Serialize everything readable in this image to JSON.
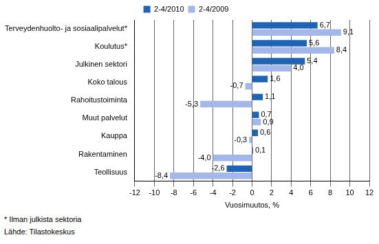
{
  "chart_data": {
    "type": "bar",
    "orientation": "horizontal",
    "categories": [
      "Terveydenhuolto- ja sosiaalipalvelut*",
      "Koulutus*",
      "Julkinen sektori",
      "Koko talous",
      "Rahoitustoiminta",
      "Muut palvelut",
      "Kauppa",
      "Rakentaminen",
      "Teollisuus"
    ],
    "series": [
      {
        "name": "2-4/2010",
        "color": "#1f64b4",
        "values": [
          6.7,
          5.6,
          5.4,
          1.6,
          1.1,
          0.7,
          0.6,
          0.1,
          -2.6
        ],
        "value_labels": [
          "6,7",
          "5,6",
          "5,4",
          "1,6",
          "1,1",
          "0,7",
          "0,6",
          "0,1",
          "-2,6"
        ]
      },
      {
        "name": "2-4/2009",
        "color": "#a3b8e8",
        "values": [
          9.1,
          8.4,
          4.0,
          -0.7,
          -5.3,
          0.9,
          -0.3,
          -4.0,
          -8.4
        ],
        "value_labels": [
          "9,1",
          "8,4",
          "4,0",
          "-0,7",
          "-5,3",
          "0,9",
          "-0,3",
          "-4,0",
          "-8,4"
        ]
      }
    ],
    "xlabel": "Vuosimuutos, %",
    "xlim": [
      -12,
      12
    ],
    "xticks": [
      -12,
      -10,
      -8,
      -6,
      -4,
      -2,
      0,
      2,
      4,
      6,
      8,
      10,
      12
    ],
    "grid": true,
    "legend": "top",
    "data_labels": true,
    "annotations": [
      "* Ilman julkista sektoria",
      "Lähde: Tilastokeskus"
    ]
  }
}
